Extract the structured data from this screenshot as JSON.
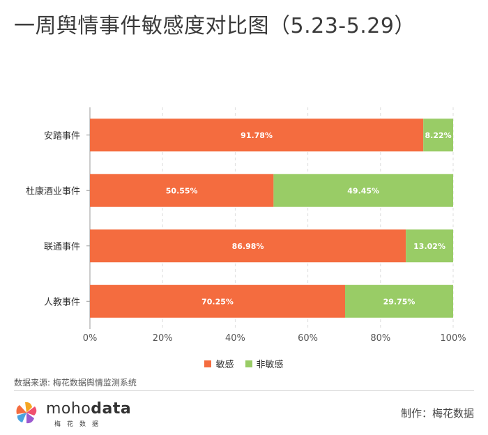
{
  "title": "一周舆情事件敏感度对比图（5.23-5.29）",
  "chart_data": {
    "type": "bar",
    "orientation": "horizontal",
    "stacked": true,
    "categories": [
      "安踏事件",
      "杜康酒业事件",
      "联通事件",
      "人教事件"
    ],
    "series": [
      {
        "name": "敏感",
        "color": "#f46c3f",
        "values": [
          91.78,
          50.55,
          86.98,
          70.25
        ],
        "labels": [
          "91.78%",
          "50.55%",
          "86.98%",
          "70.25%"
        ]
      },
      {
        "name": "非敏感",
        "color": "#99cc66",
        "values": [
          8.22,
          49.45,
          13.02,
          29.75
        ],
        "labels": [
          "8.22%",
          "49.45%",
          "13.02%",
          "29.75%"
        ]
      }
    ],
    "xlim": [
      0,
      100
    ],
    "x_ticks": [
      "0%",
      "20%",
      "40%",
      "60%",
      "80%",
      "100%"
    ],
    "grid": "vertical dashed",
    "legend_position": "bottom"
  },
  "source": "数据来源: 梅花数据舆情监测系统",
  "logo": {
    "text_light": "moho",
    "text_bold": "data",
    "subtitle": "梅花数据"
  },
  "credit": "制作：梅花数据"
}
